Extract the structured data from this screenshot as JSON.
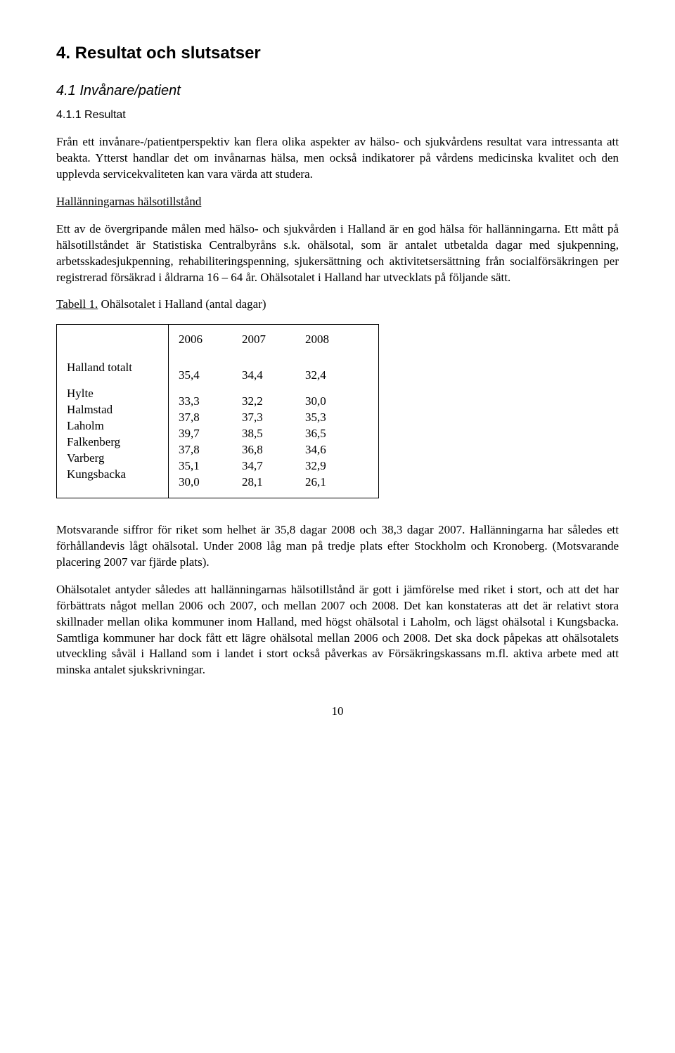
{
  "headings": {
    "h1": "4. Resultat och slutsatser",
    "h2": "4.1 Invånare/patient",
    "h3": "4.1.1 Resultat"
  },
  "paragraphs": {
    "p1": "Från ett invånare-/patientperspektiv kan flera olika aspekter av hälso- och sjukvårdens resultat vara intressanta att beakta. Ytterst handlar det om invånarnas hälsa, men också indikatorer på vårdens medicinska kvalitet och den upplevda servicekvaliteten kan vara värda att studera.",
    "sub1": "Hallänningarnas hälsotillstånd",
    "p2": "Ett av de övergripande målen med hälso- och sjukvården i Halland är en god hälsa för hallänningarna. Ett mått på hälsotillståndet är Statistiska Centralbyråns s.k. ohälsotal, som är antalet utbetalda dagar med sjukpenning, arbetsskadesjukpenning, rehabiliteringspenning, sjukersättning och aktivitetsersättning från socialförsäkringen per registrerad försäkrad i åldrarna 16 – 64 år. Ohälsotalet i Halland har utvecklats på följande sätt.",
    "table_caption": "Tabell 1. Ohälsotalet i Halland (antal dagar)",
    "p3": "Motsvarande siffror för riket som helhet är 35,8 dagar 2008 och 38,3 dagar 2007. Hallänningarna har således ett förhållandevis lågt ohälsotal. Under 2008 låg man på tredje plats efter Stockholm och Kronoberg. (Motsvarande placering 2007 var fjärde plats).",
    "p4": "Ohälsotalet antyder således att hallänningarnas hälsotillstånd är gott i jämförelse med riket i stort, och att det har förbättrats något mellan 2006 och 2007, och mellan 2007 och 2008. Det kan konstateras att det är relativt stora skillnader mellan olika kommuner inom Halland, med högst ohälsotal i Laholm, och lägst ohälsotal i Kungsbacka. Samtliga kommuner har dock fått ett lägre ohälsotal mellan 2006 och 2008. Det ska dock påpekas att ohälsotalets utveckling såväl i Halland som i landet i stort också påverkas av Försäkringskassans m.fl. aktiva arbete med att minska antalet sjukskrivningar."
  },
  "table": {
    "header": [
      "",
      "2006",
      "2007",
      "2008"
    ],
    "total_row": [
      "Halland totalt",
      "35,4",
      "34,4",
      "32,4"
    ],
    "rows": [
      [
        "Hylte",
        "33,3",
        "32,2",
        "30,0"
      ],
      [
        "Halmstad",
        "37,8",
        "37,3",
        "35,3"
      ],
      [
        "Laholm",
        "39,7",
        "38,5",
        "36,5"
      ],
      [
        "Falkenberg",
        "37,8",
        "36,8",
        "34,6"
      ],
      [
        "Varberg",
        "35,1",
        "34,7",
        "32,9"
      ],
      [
        "Kungsbacka",
        "30,0",
        "28,1",
        "26,1"
      ]
    ]
  },
  "page_number": "10"
}
